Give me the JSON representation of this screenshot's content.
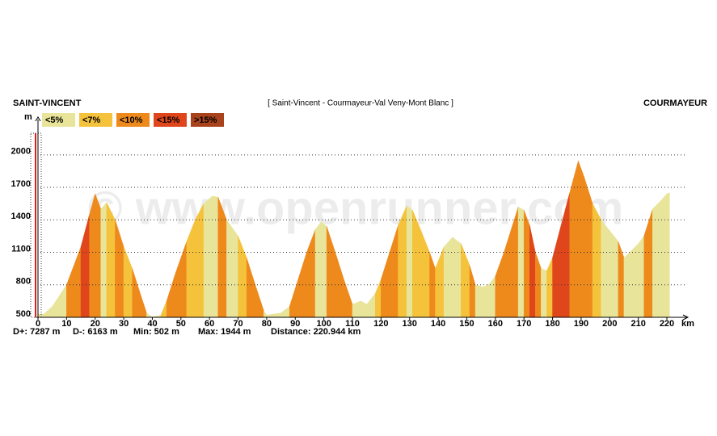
{
  "chart_data": {
    "type": "area",
    "start_label": "SAINT-VINCENT",
    "title": "[ Saint-Vincent - Courmayeur-Val Veny-Mont Blanc ]",
    "end_label": "COURMAYEUR",
    "watermark": "© www.openrunner.com",
    "ylabel": "m",
    "xlabel": "km",
    "stats": [
      "D+: 7287 m",
      "D-: 6163 m",
      "Min: 502 m",
      "Max: 1944 m",
      "Distance: 220.944 km"
    ],
    "gradient_classes": [
      {
        "label": "<5%",
        "color": "#e8e49a",
        "max": 5
      },
      {
        "label": "<7%",
        "color": "#f5c23c",
        "max": 7
      },
      {
        "label": "<10%",
        "color": "#ee8a1c",
        "max": 10
      },
      {
        "label": "<15%",
        "color": "#e0461c",
        "max": 15
      },
      {
        "label": ">15%",
        "color": "#a8431c",
        "min": 15
      }
    ],
    "x": [
      0,
      2,
      5,
      10,
      15,
      18,
      20,
      22,
      24,
      27,
      30,
      33,
      36,
      38,
      40,
      43,
      45,
      48,
      52,
      55,
      58,
      61,
      63,
      66,
      70,
      73,
      76,
      79,
      80,
      85,
      88,
      91,
      94,
      97,
      99,
      101,
      104,
      107,
      110,
      113,
      115,
      118,
      120,
      123,
      126,
      129,
      131,
      134,
      137,
      139,
      142,
      145,
      148,
      151,
      153,
      156,
      158,
      160,
      163,
      166,
      168,
      170,
      172,
      174,
      176,
      178,
      180,
      183,
      186,
      189,
      191,
      194,
      197,
      200,
      203,
      205,
      207,
      210,
      212,
      215,
      218,
      220,
      220.944
    ],
    "values": [
      530,
      530,
      600,
      800,
      1150,
      1450,
      1640,
      1500,
      1560,
      1400,
      1150,
      950,
      700,
      540,
      502,
      520,
      650,
      900,
      1200,
      1400,
      1550,
      1620,
      1610,
      1400,
      1250,
      1050,
      800,
      560,
      520,
      540,
      600,
      850,
      1100,
      1310,
      1380,
      1340,
      1100,
      850,
      620,
      650,
      620,
      720,
      850,
      1100,
      1350,
      1530,
      1490,
      1300,
      1100,
      950,
      1150,
      1240,
      1180,
      980,
      800,
      780,
      810,
      880,
      1100,
      1350,
      1520,
      1490,
      1350,
      1100,
      950,
      930,
      1050,
      1350,
      1650,
      1944,
      1800,
      1550,
      1400,
      1300,
      1200,
      1050,
      1100,
      1180,
      1250,
      1500,
      1580,
      1640,
      1650
    ],
    "xlim": [
      0,
      220
    ],
    "xticks": [
      0,
      10,
      20,
      30,
      40,
      50,
      60,
      70,
      80,
      90,
      100,
      110,
      120,
      130,
      140,
      150,
      160,
      170,
      180,
      190,
      200,
      210,
      220
    ],
    "ylim": [
      500,
      2200
    ],
    "yticks": [
      500,
      800,
      1100,
      1400,
      1700,
      2000
    ],
    "grid": true
  }
}
